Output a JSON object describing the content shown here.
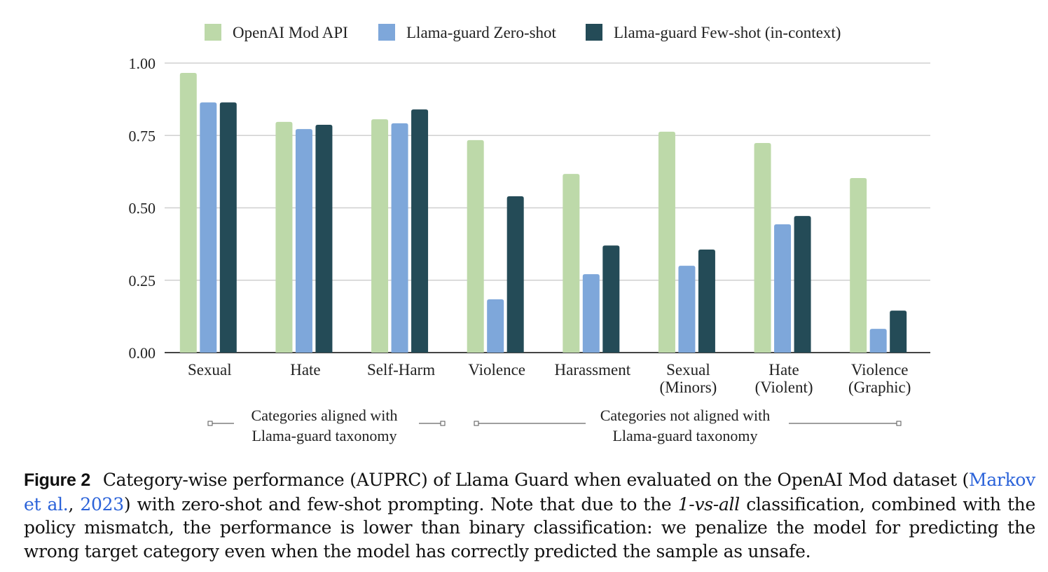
{
  "chart_data": {
    "type": "bar",
    "categories": [
      [
        "Sexual"
      ],
      [
        "Hate"
      ],
      [
        "Self-Harm"
      ],
      [
        "Violence"
      ],
      [
        "Harassment"
      ],
      [
        "Sexual",
        "(Minors)"
      ],
      [
        "Hate",
        "(Violent)"
      ],
      [
        "Violence",
        "(Graphic)"
      ]
    ],
    "series": [
      {
        "name": "OpenAI Mod API",
        "color": "#bdd9a9",
        "values": [
          0.966,
          0.797,
          0.806,
          0.734,
          0.617,
          0.763,
          0.724,
          0.603
        ]
      },
      {
        "name": "Llama-guard Zero-shot",
        "color": "#7ea7da",
        "values": [
          0.864,
          0.772,
          0.792,
          0.184,
          0.271,
          0.3,
          0.443,
          0.082
        ]
      },
      {
        "name": "Llama-guard Few-shot (in-context)",
        "color": "#244b57",
        "values": [
          0.864,
          0.787,
          0.84,
          0.54,
          0.37,
          0.356,
          0.472,
          0.145
        ]
      }
    ],
    "ylim": [
      0,
      1
    ],
    "yticks": [
      "0.00",
      "0.25",
      "0.50",
      "0.75",
      "1.00"
    ],
    "grid": true,
    "legend_position": "top",
    "group_annotations": [
      {
        "lines": [
          "Categories aligned with",
          "Llama-guard taxonomy"
        ]
      },
      {
        "lines": [
          "Categories not aligned with",
          "Llama-guard taxonomy"
        ]
      }
    ]
  },
  "caption": {
    "label": "Figure 2",
    "text1": "Category-wise performance (AUPRC) of Llama Guard when evaluated on the OpenAI Mod dataset (",
    "cite_author": "Markov et al.",
    "sep": ", ",
    "cite_year": "2023",
    "text2": ") with zero-shot and few-shot prompting. Note that due to the ",
    "emph": "1-vs-all",
    "text3": " classification, combined with the policy mismatch, the performance is lower than binary classification: we penalize the model for predicting the wrong target category even when the model has correctly predicted the sample as unsafe."
  }
}
